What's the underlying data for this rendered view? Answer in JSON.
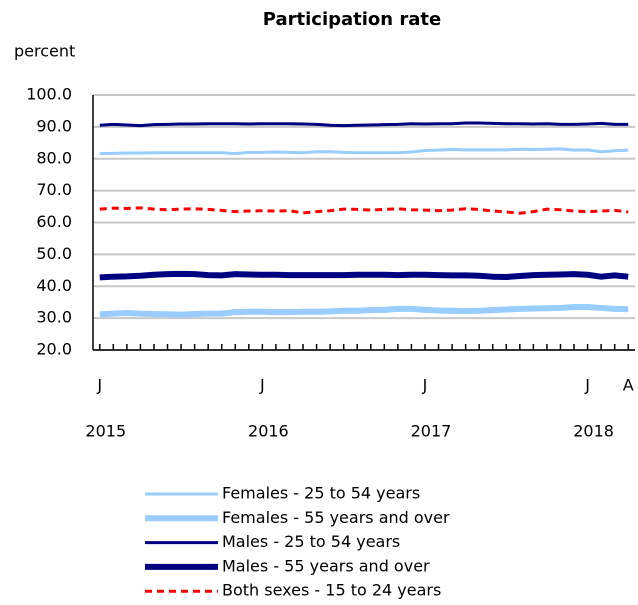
{
  "chart_data": {
    "type": "line",
    "title": "Participation rate",
    "y_label": "percent",
    "categories": [
      "J",
      null,
      null,
      null,
      null,
      null,
      null,
      null,
      null,
      null,
      null,
      null,
      "J",
      null,
      null,
      null,
      null,
      null,
      null,
      null,
      null,
      null,
      null,
      null,
      "J",
      null,
      null,
      null,
      null,
      null,
      null,
      null,
      null,
      null,
      null,
      null,
      "J",
      null,
      null,
      "A"
    ],
    "year_labels": [
      "2015",
      "2016",
      "2017",
      "2018"
    ],
    "ylim": [
      20,
      100
    ],
    "yticks": [
      {
        "value": 20,
        "label": "20.0"
      },
      {
        "value": 30,
        "label": "30.0"
      },
      {
        "value": 40,
        "label": "40.0"
      },
      {
        "value": 50,
        "label": "50.0"
      },
      {
        "value": 60,
        "label": "60.0"
      },
      {
        "value": 70,
        "label": "70.0"
      },
      {
        "value": 80,
        "label": "80.0"
      },
      {
        "value": 90,
        "label": "90.0"
      },
      {
        "value": 100,
        "label": "100.0"
      }
    ],
    "grid": true,
    "series": [
      {
        "name": "Females - 25 to 54 years",
        "color": "#99ccff",
        "line_width": 3,
        "dashed": false,
        "values": [
          81.6,
          81.7,
          81.8,
          81.8,
          81.9,
          81.9,
          81.9,
          81.9,
          81.9,
          81.9,
          81.6,
          82.0,
          82.0,
          82.1,
          82.0,
          81.9,
          82.2,
          82.2,
          82.0,
          81.9,
          81.9,
          81.9,
          81.9,
          82.1,
          82.6,
          82.7,
          82.9,
          82.8,
          82.8,
          82.8,
          82.8,
          83.0,
          82.9,
          83.0,
          83.1,
          82.7,
          82.8,
          82.2,
          82.5,
          82.7
        ]
      },
      {
        "name": "Females - 55 years and over",
        "color": "#99ccff",
        "line_width": 6,
        "dashed": false,
        "values": [
          31.2,
          31.4,
          31.6,
          31.4,
          31.3,
          31.2,
          31.1,
          31.3,
          31.4,
          31.4,
          31.9,
          32.0,
          32.0,
          31.9,
          31.9,
          32.0,
          32.0,
          32.1,
          32.3,
          32.3,
          32.5,
          32.6,
          32.9,
          32.9,
          32.6,
          32.4,
          32.3,
          32.2,
          32.3,
          32.5,
          32.7,
          32.9,
          33.0,
          33.1,
          33.2,
          33.5,
          33.5,
          33.2,
          32.9,
          32.8
        ]
      },
      {
        "name": "Males - 25 to 54 years",
        "color": "#000080",
        "line_width": 3,
        "dashed": false,
        "values": [
          90.5,
          90.8,
          90.6,
          90.4,
          90.7,
          90.8,
          90.9,
          90.9,
          91.0,
          91.0,
          91.0,
          90.9,
          91.0,
          91.0,
          91.0,
          90.9,
          90.8,
          90.5,
          90.4,
          90.5,
          90.6,
          90.7,
          90.8,
          91.0,
          90.9,
          91.0,
          91.0,
          91.2,
          91.2,
          91.1,
          91.0,
          91.0,
          90.9,
          91.0,
          90.8,
          90.8,
          90.9,
          91.1,
          90.8,
          90.8
        ]
      },
      {
        "name": "Males - 55 years and over",
        "color": "#000080",
        "line_width": 6,
        "dashed": false,
        "values": [
          42.8,
          43.0,
          43.1,
          43.3,
          43.6,
          43.8,
          43.9,
          43.8,
          43.5,
          43.4,
          43.8,
          43.7,
          43.6,
          43.6,
          43.5,
          43.5,
          43.5,
          43.5,
          43.5,
          43.6,
          43.6,
          43.6,
          43.5,
          43.6,
          43.6,
          43.5,
          43.4,
          43.4,
          43.3,
          43.0,
          42.9,
          43.2,
          43.5,
          43.6,
          43.7,
          43.8,
          43.6,
          43.0,
          43.4,
          43.0
        ]
      },
      {
        "name": "Both sexes - 15 to 24 years",
        "color": "#ff0000",
        "line_width": 3,
        "dashed": true,
        "values": [
          64.2,
          64.5,
          64.4,
          64.6,
          64.2,
          64.0,
          64.2,
          64.3,
          64.1,
          63.8,
          63.4,
          63.6,
          63.7,
          63.6,
          63.7,
          63.0,
          63.4,
          63.7,
          64.2,
          64.1,
          63.9,
          64.1,
          64.3,
          64.0,
          63.9,
          63.7,
          63.9,
          64.3,
          64.1,
          63.6,
          63.3,
          62.9,
          63.4,
          64.2,
          64.0,
          63.6,
          63.4,
          63.6,
          63.8,
          63.3
        ]
      }
    ]
  }
}
